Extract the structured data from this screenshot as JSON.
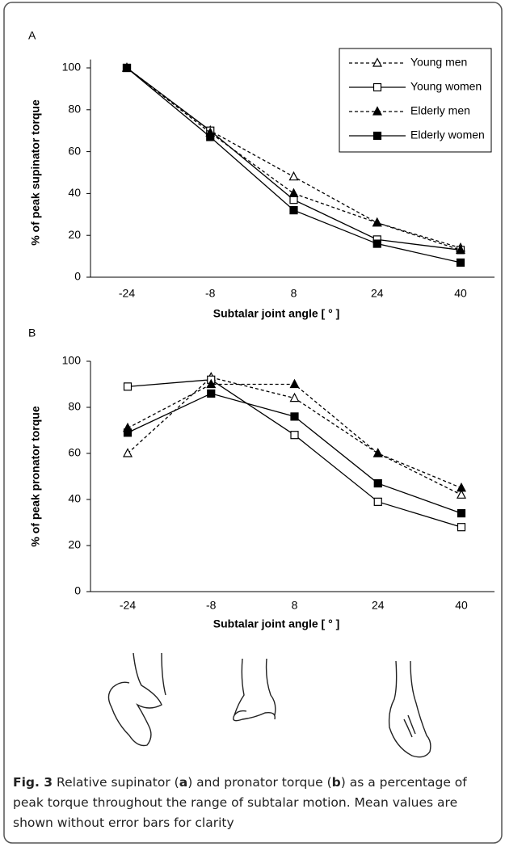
{
  "chart_data": [
    {
      "type": "line",
      "title": "A",
      "x_label": "Subtalar joint angle [ ° ]",
      "y_label": "% of peak supinator torque",
      "categories": [
        -24,
        -8,
        8,
        24,
        40
      ],
      "ylim": [
        0,
        104
      ],
      "yticks": [
        0,
        20,
        40,
        60,
        80,
        100
      ],
      "legend": "upper right",
      "series": [
        {
          "name": "Young men",
          "color": "#000000",
          "marker": "triangle-open",
          "dashed": true,
          "values": [
            100,
            70,
            48,
            26,
            14
          ]
        },
        {
          "name": "Young women",
          "color": "#000000",
          "marker": "square-open",
          "dashed": false,
          "values": [
            100,
            70,
            37,
            18,
            13
          ]
        },
        {
          "name": "Elderly men",
          "color": "#000000",
          "marker": "triangle-filled",
          "dashed": true,
          "values": [
            100,
            69,
            40,
            26,
            13
          ]
        },
        {
          "name": "Elderly women",
          "color": "#000000",
          "marker": "square-filled",
          "dashed": false,
          "values": [
            100,
            67,
            32,
            16,
            7
          ]
        }
      ]
    },
    {
      "type": "line",
      "title": "B",
      "x_label": "Subtalar joint angle [ ° ]",
      "y_label": "% of peak pronator torque",
      "categories": [
        -24,
        -8,
        8,
        24,
        40
      ],
      "ylim": [
        0,
        100
      ],
      "yticks": [
        0,
        20,
        40,
        60,
        80,
        100
      ],
      "series": [
        {
          "color": "#000000",
          "marker": "triangle-open",
          "dashed": true,
          "values": [
            60,
            93,
            84,
            60,
            42
          ]
        },
        {
          "color": "#000000",
          "marker": "square-open",
          "dashed": false,
          "values": [
            89,
            92,
            68,
            39,
            28
          ]
        },
        {
          "color": "#000000",
          "marker": "triangle-filled",
          "dashed": true,
          "values": [
            71,
            90,
            90,
            60,
            45
          ]
        },
        {
          "color": "#000000",
          "marker": "square-filled",
          "dashed": false,
          "values": [
            69,
            86,
            76,
            47,
            34
          ]
        }
      ]
    }
  ],
  "caption": [
    "Fig. 3",
    " Relative supinator (",
    "a",
    ") and pronator torque (",
    "b",
    ") as a percentage of peak torque throughout the range of subtalar motion. Mean values are shown without error bars for clarity"
  ]
}
